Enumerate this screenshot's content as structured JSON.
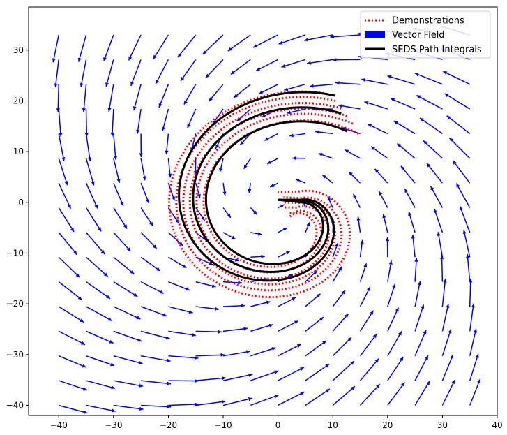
{
  "chart_data": {
    "type": "line",
    "title": "",
    "xlabel": "",
    "ylabel": "",
    "xlim": [
      -45.5,
      40
    ],
    "ylim": [
      -42,
      38.5
    ],
    "xticks": [
      -40,
      -30,
      -20,
      -10,
      0,
      10,
      20,
      30,
      40
    ],
    "yticks": [
      -40,
      -30,
      -20,
      -10,
      0,
      10,
      20,
      30
    ],
    "grid": false,
    "legend": {
      "position": "top-right",
      "entries": [
        {
          "label": "Demonstrations",
          "style": "dotted",
          "color": "#ff0000"
        },
        {
          "label": "Vector Field",
          "style": "patch",
          "color": "#0000ff"
        },
        {
          "label": "SEDS Path Integrals",
          "style": "solid",
          "color": "#000000"
        }
      ]
    },
    "series": [
      {
        "name": "Demonstrations",
        "style": "dotted",
        "color": "#ff0000",
        "curves": [
          {
            "start": [
              8,
              21.5
            ],
            "end": [
              0,
              2
            ]
          },
          {
            "start": [
              10,
              20
            ],
            "end": [
              1,
              1
            ]
          },
          {
            "start": [
              11,
              18.5
            ],
            "end": [
              1,
              0
            ]
          },
          {
            "start": [
              12,
              17
            ],
            "end": [
              1,
              -1
            ]
          },
          {
            "start": [
              13,
              15.5
            ],
            "end": [
              2,
              -2
            ]
          },
          {
            "start": [
              14,
              13.5
            ],
            "end": [
              2,
              -3
            ]
          }
        ]
      },
      {
        "name": "SEDS Path Integrals",
        "style": "solid",
        "color": "#000000",
        "curves": [
          {
            "start": [
              10,
              21
            ],
            "end": [
              0,
              0.5
            ]
          },
          {
            "start": [
              11,
              17.5
            ],
            "end": [
              0,
              0.5
            ]
          },
          {
            "start": [
              12,
              14
            ],
            "end": [
              0,
              0.5
            ]
          }
        ]
      },
      {
        "name": "Vector Field",
        "style": "quiver",
        "color": "#0000ff",
        "attractor": [
          0,
          0
        ],
        "x_range": [
          -40,
          35
        ],
        "y_range": [
          -40,
          33
        ]
      }
    ]
  }
}
